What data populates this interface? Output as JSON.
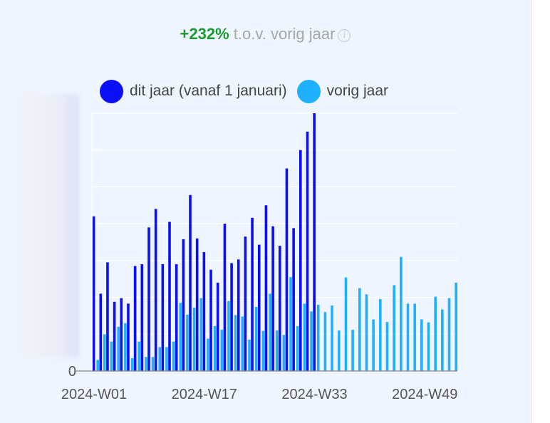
{
  "header": {
    "change_value": "+232%",
    "change_text": "t.o.v. vorig jaar",
    "info_icon": "info-icon"
  },
  "colors": {
    "this_year": "#0a0ff5",
    "last_year": "#1fb0ff",
    "change_positive": "#1a9a2e",
    "gridline": "#ffffff",
    "axis": "#888888"
  },
  "chart_data": {
    "type": "bar",
    "title": "",
    "xlabel": "",
    "ylabel": "",
    "y_tick_labels": [
      "0"
    ],
    "ylim": [
      0,
      70
    ],
    "grid": true,
    "legend_position": "top",
    "x_tick_labels": [
      "2024-W01",
      "2024-W17",
      "2024-W33",
      "2024-W49"
    ],
    "x_tick_weeks": [
      1,
      17,
      33,
      49
    ],
    "weeks": [
      1,
      2,
      3,
      4,
      5,
      6,
      7,
      8,
      9,
      10,
      11,
      12,
      13,
      14,
      15,
      16,
      17,
      18,
      19,
      20,
      21,
      22,
      23,
      24,
      25,
      26,
      27,
      28,
      29,
      30,
      31,
      32,
      33,
      34,
      35,
      36,
      37,
      38,
      39,
      40,
      41,
      42,
      43,
      44,
      45,
      46,
      47,
      48,
      49,
      50,
      51,
      52,
      53
    ],
    "series": [
      {
        "name": "dit jaar (vanaf 1 januari)",
        "values": [
          42,
          21,
          29.5,
          18.8,
          19.8,
          18.3,
          28.5,
          29,
          39,
          44,
          29,
          40.5,
          29,
          35.8,
          47.8,
          36,
          32.3,
          27.5,
          24,
          40,
          29.3,
          30.3,
          36.5,
          41.6,
          34.3,
          45,
          39.3,
          34,
          55,
          38.8,
          60,
          65,
          70
        ]
      },
      {
        "name": "vorig jaar",
        "values": [
          3,
          10,
          8,
          12,
          13,
          3.5,
          8,
          3.8,
          3.8,
          6.5,
          6.5,
          8,
          18.5,
          15.3,
          17.2,
          19.8,
          8.8,
          12.2,
          11.2,
          19,
          15.2,
          14.8,
          8.5,
          17.4,
          10.9,
          21,
          11,
          9.8,
          25.5,
          12.2,
          18.3,
          16.2,
          18,
          16,
          17.8,
          11,
          25.4,
          11.2,
          22.5,
          20.8,
          14,
          19.5,
          13.3,
          23.3,
          31,
          18.3,
          18.3,
          14,
          13.2,
          20.2,
          16.7,
          19.8,
          24
        ]
      }
    ]
  }
}
